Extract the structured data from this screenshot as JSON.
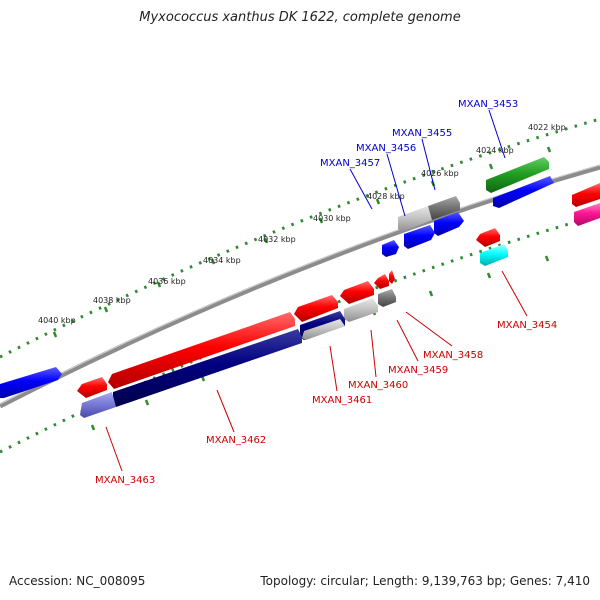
{
  "title": "Myxococcus xanthus DK 1622, complete genome",
  "footer": {
    "accession": "Accession: NC_008095",
    "topology": "Topology: circular",
    "length": "Length: 9,139,763 bp",
    "genes": "Genes: 7,410"
  },
  "colors": {
    "backbone": "#8c8c8c",
    "ruler_dots": "#2e8b2e",
    "label_forward": "#0000cc",
    "label_reverse": "#cc0000"
  },
  "ruler_labels": [
    "4022 kbp",
    "4024 kbp",
    "4026 kbp",
    "4028 kbp",
    "4030 kbp",
    "4032 kbp",
    "4034 kbp",
    "4036 kbp",
    "4038 kbp",
    "4040 kbp"
  ],
  "forward_labels": [
    "MXAN_3453",
    "MXAN_3455",
    "MXAN_3456",
    "MXAN_3457"
  ],
  "reverse_labels": [
    "MXAN_3454",
    "MXAN_3458",
    "MXAN_3459",
    "MXAN_3460",
    "MXAN_3461",
    "MXAN_3462",
    "MXAN_3463"
  ]
}
